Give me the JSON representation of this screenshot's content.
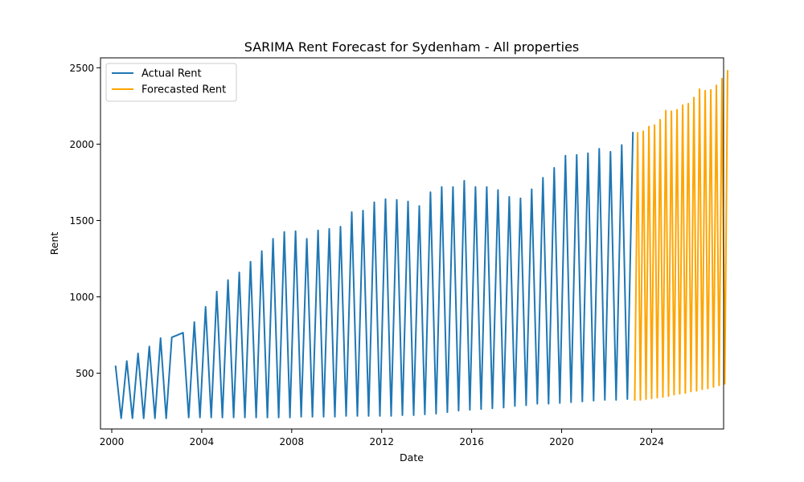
{
  "chart_data": {
    "type": "line",
    "title": "SARIMA Rent Forecast for Sydenham - All properties",
    "xlabel": "Date",
    "ylabel": "Rent",
    "xlim": [
      1999.5,
      2027.2
    ],
    "ylim": [
      135,
      2565
    ],
    "x_ticks": [
      2000,
      2004,
      2008,
      2012,
      2016,
      2020,
      2024
    ],
    "y_ticks": [
      500,
      1000,
      1500,
      2000,
      2500
    ],
    "grid": false,
    "legend": "top-left",
    "series": [
      {
        "name": "Actual Rent",
        "color": "#1f77b4",
        "points": [
          [
            2000.17,
            550
          ],
          [
            2000.42,
            205
          ],
          [
            2000.67,
            580
          ],
          [
            2000.92,
            205
          ],
          [
            2001.17,
            630
          ],
          [
            2001.42,
            205
          ],
          [
            2001.67,
            675
          ],
          [
            2001.92,
            205
          ],
          [
            2002.17,
            730
          ],
          [
            2002.42,
            205
          ],
          [
            2002.67,
            735
          ],
          [
            2003.17,
            765
          ],
          [
            2003.42,
            210
          ],
          [
            2003.67,
            835
          ],
          [
            2003.92,
            210
          ],
          [
            2004.17,
            935
          ],
          [
            2004.42,
            210
          ],
          [
            2004.67,
            1035
          ],
          [
            2004.92,
            210
          ],
          [
            2005.17,
            1110
          ],
          [
            2005.42,
            210
          ],
          [
            2005.67,
            1160
          ],
          [
            2005.92,
            210
          ],
          [
            2006.17,
            1230
          ],
          [
            2006.42,
            210
          ],
          [
            2006.67,
            1300
          ],
          [
            2006.92,
            210
          ],
          [
            2007.17,
            1380
          ],
          [
            2007.42,
            210
          ],
          [
            2007.67,
            1425
          ],
          [
            2007.92,
            210
          ],
          [
            2008.17,
            1430
          ],
          [
            2008.42,
            215
          ],
          [
            2008.67,
            1380
          ],
          [
            2008.92,
            215
          ],
          [
            2009.17,
            1435
          ],
          [
            2009.42,
            215
          ],
          [
            2009.67,
            1445
          ],
          [
            2009.92,
            215
          ],
          [
            2010.17,
            1460
          ],
          [
            2010.42,
            220
          ],
          [
            2010.67,
            1555
          ],
          [
            2010.92,
            220
          ],
          [
            2011.17,
            1565
          ],
          [
            2011.42,
            220
          ],
          [
            2011.67,
            1620
          ],
          [
            2011.92,
            220
          ],
          [
            2012.17,
            1640
          ],
          [
            2012.42,
            220
          ],
          [
            2012.67,
            1635
          ],
          [
            2012.92,
            225
          ],
          [
            2013.17,
            1625
          ],
          [
            2013.42,
            225
          ],
          [
            2013.67,
            1595
          ],
          [
            2013.92,
            230
          ],
          [
            2014.17,
            1685
          ],
          [
            2014.42,
            235
          ],
          [
            2014.67,
            1720
          ],
          [
            2014.92,
            245
          ],
          [
            2015.17,
            1720
          ],
          [
            2015.42,
            255
          ],
          [
            2015.67,
            1760
          ],
          [
            2015.92,
            260
          ],
          [
            2016.17,
            1720
          ],
          [
            2016.42,
            265
          ],
          [
            2016.67,
            1720
          ],
          [
            2016.92,
            270
          ],
          [
            2017.17,
            1700
          ],
          [
            2017.42,
            275
          ],
          [
            2017.67,
            1655
          ],
          [
            2017.92,
            285
          ],
          [
            2018.17,
            1645
          ],
          [
            2018.42,
            290
          ],
          [
            2018.67,
            1705
          ],
          [
            2018.92,
            300
          ],
          [
            2019.17,
            1780
          ],
          [
            2019.42,
            300
          ],
          [
            2019.67,
            1845
          ],
          [
            2019.92,
            305
          ],
          [
            2020.17,
            1925
          ],
          [
            2020.42,
            310
          ],
          [
            2020.67,
            1930
          ],
          [
            2020.92,
            315
          ],
          [
            2021.17,
            1940
          ],
          [
            2021.42,
            320
          ],
          [
            2021.67,
            1970
          ],
          [
            2021.92,
            325
          ],
          [
            2022.17,
            1950
          ],
          [
            2022.42,
            325
          ],
          [
            2022.67,
            1995
          ],
          [
            2022.92,
            330
          ],
          [
            2023.17,
            2080
          ]
        ]
      },
      {
        "name": "Forecasted Rent",
        "color": "#ffa500",
        "points": [
          [
            2023.25,
            320
          ],
          [
            2023.38,
            2075
          ],
          [
            2023.5,
            325
          ],
          [
            2023.63,
            2085
          ],
          [
            2023.75,
            330
          ],
          [
            2023.88,
            2115
          ],
          [
            2024.0,
            335
          ],
          [
            2024.13,
            2125
          ],
          [
            2024.25,
            340
          ],
          [
            2024.38,
            2160
          ],
          [
            2024.5,
            345
          ],
          [
            2024.63,
            2220
          ],
          [
            2024.75,
            350
          ],
          [
            2024.88,
            2215
          ],
          [
            2025.0,
            360
          ],
          [
            2025.13,
            2225
          ],
          [
            2025.25,
            365
          ],
          [
            2025.38,
            2255
          ],
          [
            2025.5,
            370
          ],
          [
            2025.63,
            2265
          ],
          [
            2025.75,
            380
          ],
          [
            2025.88,
            2305
          ],
          [
            2026.0,
            385
          ],
          [
            2026.13,
            2360
          ],
          [
            2026.25,
            395
          ],
          [
            2026.38,
            2350
          ],
          [
            2026.5,
            400
          ],
          [
            2026.63,
            2355
          ],
          [
            2026.75,
            410
          ],
          [
            2026.88,
            2385
          ],
          [
            2027.0,
            420
          ],
          [
            2027.13,
            2430
          ],
          [
            2027.25,
            430
          ],
          [
            2027.38,
            2485
          ]
        ]
      }
    ]
  }
}
